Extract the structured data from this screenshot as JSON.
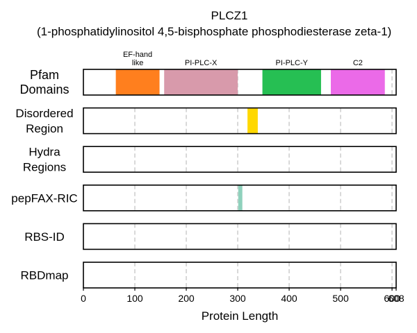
{
  "chart_data": {
    "type": "bar",
    "title": "PLCZ1",
    "subtitle": "(1-phosphatidylinositol 4,5-bisphosphate phosphodiesterase zeta-1)",
    "xlabel": "Protein Length",
    "xlim": [
      0,
      608
    ],
    "xticks": [
      0,
      100,
      200,
      300,
      400,
      500,
      600,
      608
    ],
    "tick_labels": [
      "0",
      "100",
      "200",
      "300",
      "400",
      "500",
      "600",
      "608"
    ],
    "grid": "vertical dashed at ticks",
    "tracks": [
      {
        "name": "Pfam\nDomains",
        "segments": [
          {
            "label": "EF-hand\nlike",
            "start": 63,
            "end": 148,
            "color": "#ff7f1e"
          },
          {
            "label": "PI-PLC-X",
            "start": 157,
            "end": 300,
            "color": "#d89aab"
          },
          {
            "label": "PI-PLC-Y",
            "start": 348,
            "end": 462,
            "color": "#26bf53"
          },
          {
            "label": "C2",
            "start": 481,
            "end": 586,
            "color": "#eb6ae8"
          }
        ]
      },
      {
        "name": "Disordered\nRegion",
        "segments": [
          {
            "label": "",
            "start": 319,
            "end": 339,
            "color": "#ffd800"
          }
        ]
      },
      {
        "name": "Hydra\nRegions",
        "segments": []
      },
      {
        "name": "pepFAX-RIC",
        "segments": [
          {
            "label": "",
            "start": 301,
            "end": 309,
            "color": "#8fd1bc"
          }
        ]
      },
      {
        "name": "RBS-ID",
        "segments": []
      },
      {
        "name": "RBDmap",
        "segments": []
      }
    ]
  }
}
